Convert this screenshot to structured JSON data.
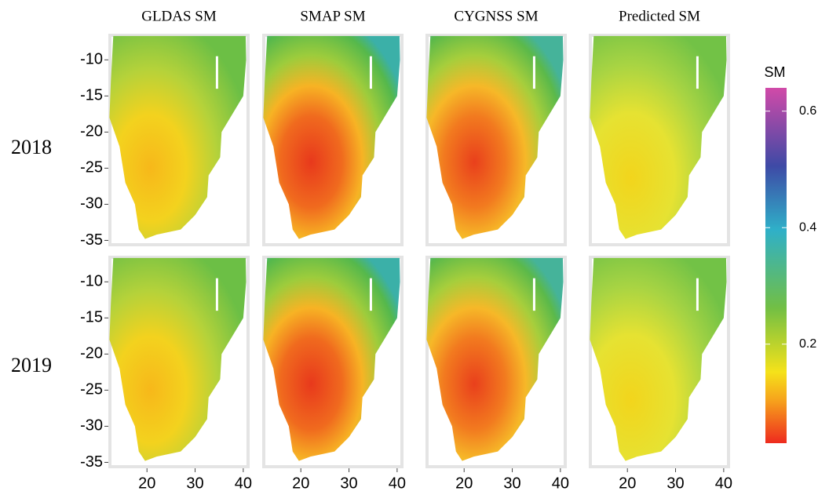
{
  "columns": [
    "GLDAS SM",
    "SMAP SM",
    "CYGNSS SM",
    "Predicted SM"
  ],
  "rows": [
    "2018",
    "2019"
  ],
  "y_axis": {
    "lim": [
      -6.6,
      -35.6
    ],
    "ticks": [
      -10,
      -15,
      -20,
      -25,
      -30,
      -35
    ]
  },
  "x_axis": {
    "lim": [
      12.3,
      41
    ],
    "ticks": [
      20,
      30,
      40
    ]
  },
  "colorbar": {
    "title": "SM",
    "lim": [
      0.03,
      0.64
    ],
    "ticks": [
      0.2,
      0.4,
      0.6
    ]
  }
}
